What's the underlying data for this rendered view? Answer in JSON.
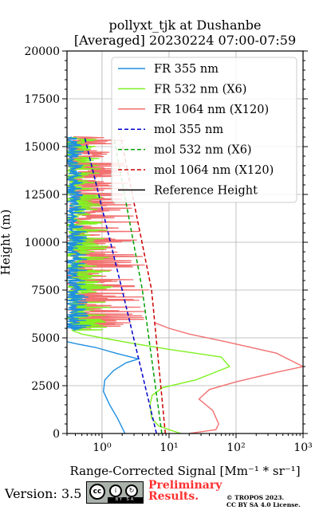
{
  "title_line1": "pollyxt_tjk at Dushanbe",
  "title_line2": "[Averaged] 20230224 07:00-07:59",
  "footer": {
    "version": "Version: 3.5",
    "license_badge": "BY SA",
    "preliminary_line1": "Preliminary",
    "preliminary_line2": "Results.",
    "copyright_line1": "© TROPOS 2023.",
    "copyright_line2": "CC BY SA 4.0 License."
  },
  "chart_data": {
    "type": "line",
    "title": "pollyxt_tjk at Dushanbe [Averaged] 20230224 07:00-07:59",
    "xlabel": "Range-Corrected Signal [Mm⁻¹ * sr⁻¹]",
    "ylabel": "Height (m)",
    "xscale": "log",
    "xlim": [
      0.3,
      1000
    ],
    "ylim": [
      0,
      20000
    ],
    "xticks": [
      "10⁰",
      "10¹",
      "10²",
      "10³"
    ],
    "yticks": [
      "0",
      "2500",
      "5000",
      "7500",
      "10000",
      "12500",
      "15000",
      "17500",
      "20000"
    ],
    "grid": true,
    "legend_position": "top-right",
    "colors": {
      "fr355": "#1f8fe0",
      "fr532": "#80f020",
      "fr1064": "#f27070",
      "mol355": "#0000cc",
      "mol532": "#00a000",
      "mol1064": "#cc0000",
      "reference": "#000000"
    },
    "series": [
      {
        "name": "FR 355 nm",
        "key": "fr355",
        "style": "solid",
        "points": [
          [
            2.2,
            0
          ],
          [
            2.0,
            300
          ],
          [
            1.7,
            800
          ],
          [
            1.3,
            1500
          ],
          [
            1.05,
            2200
          ],
          [
            1.1,
            2800
          ],
          [
            1.5,
            3300
          ],
          [
            2.3,
            3700
          ],
          [
            3.5,
            3900
          ],
          [
            1.6,
            4200
          ],
          [
            0.8,
            4500
          ],
          [
            0.4,
            4700
          ],
          [
            0.3,
            4800
          ]
        ],
        "noisy_region": {
          "ymin": 5400,
          "ymax": 15500,
          "xmin": 0.3,
          "xmax": 1.4
        }
      },
      {
        "name": "FR 532 nm (X6)",
        "key": "fr532",
        "style": "solid",
        "points": [
          [
            15,
            0
          ],
          [
            10,
            200
          ],
          [
            7,
            400
          ],
          [
            5.5,
            800
          ],
          [
            5.2,
            1500
          ],
          [
            5.6,
            2000
          ],
          [
            8,
            2400
          ],
          [
            25,
            2800
          ],
          [
            80,
            3500
          ],
          [
            60,
            4000
          ],
          [
            10,
            4400
          ],
          [
            3,
            4700
          ],
          [
            1,
            5000
          ],
          [
            0.5,
            5200
          ],
          [
            0.35,
            5400
          ]
        ],
        "noisy_region": {
          "ymin": 5400,
          "ymax": 15500,
          "xmin": 0.3,
          "xmax": 3.5
        }
      },
      {
        "name": "FR 1064 nm (X120)",
        "key": "fr1064",
        "style": "solid",
        "points": [
          [
            20,
            0
          ],
          [
            50,
            200
          ],
          [
            55,
            500
          ],
          [
            45,
            1200
          ],
          [
            28,
            1800
          ],
          [
            40,
            2300
          ],
          [
            100,
            2700
          ],
          [
            400,
            3200
          ],
          [
            1000,
            3500
          ],
          [
            400,
            4200
          ],
          [
            70,
            4800
          ],
          [
            20,
            5200
          ],
          [
            10,
            5500
          ],
          [
            6,
            5800
          ]
        ],
        "noisy_region": {
          "ymin": 5500,
          "ymax": 15500,
          "xmin": 0.3,
          "xmax": 11
        }
      },
      {
        "name": "mol 355 nm",
        "key": "mol355",
        "style": "dashed",
        "points": [
          [
            6.5,
            0
          ],
          [
            2.0,
            7500
          ],
          [
            0.55,
            15500
          ]
        ]
      },
      {
        "name": "mol 532 nm (X6)",
        "key": "mol532",
        "style": "dashed",
        "points": [
          [
            7.8,
            0
          ],
          [
            4.0,
            7500
          ],
          [
            1.5,
            15500
          ]
        ]
      },
      {
        "name": "mol 1064 nm (X120)",
        "key": "mol1064",
        "style": "dashed",
        "points": [
          [
            8.8,
            0
          ],
          [
            5.5,
            7500
          ],
          [
            1.9,
            15500
          ]
        ]
      },
      {
        "name": "Reference Height",
        "key": "reference",
        "style": "solid",
        "points": []
      }
    ]
  }
}
